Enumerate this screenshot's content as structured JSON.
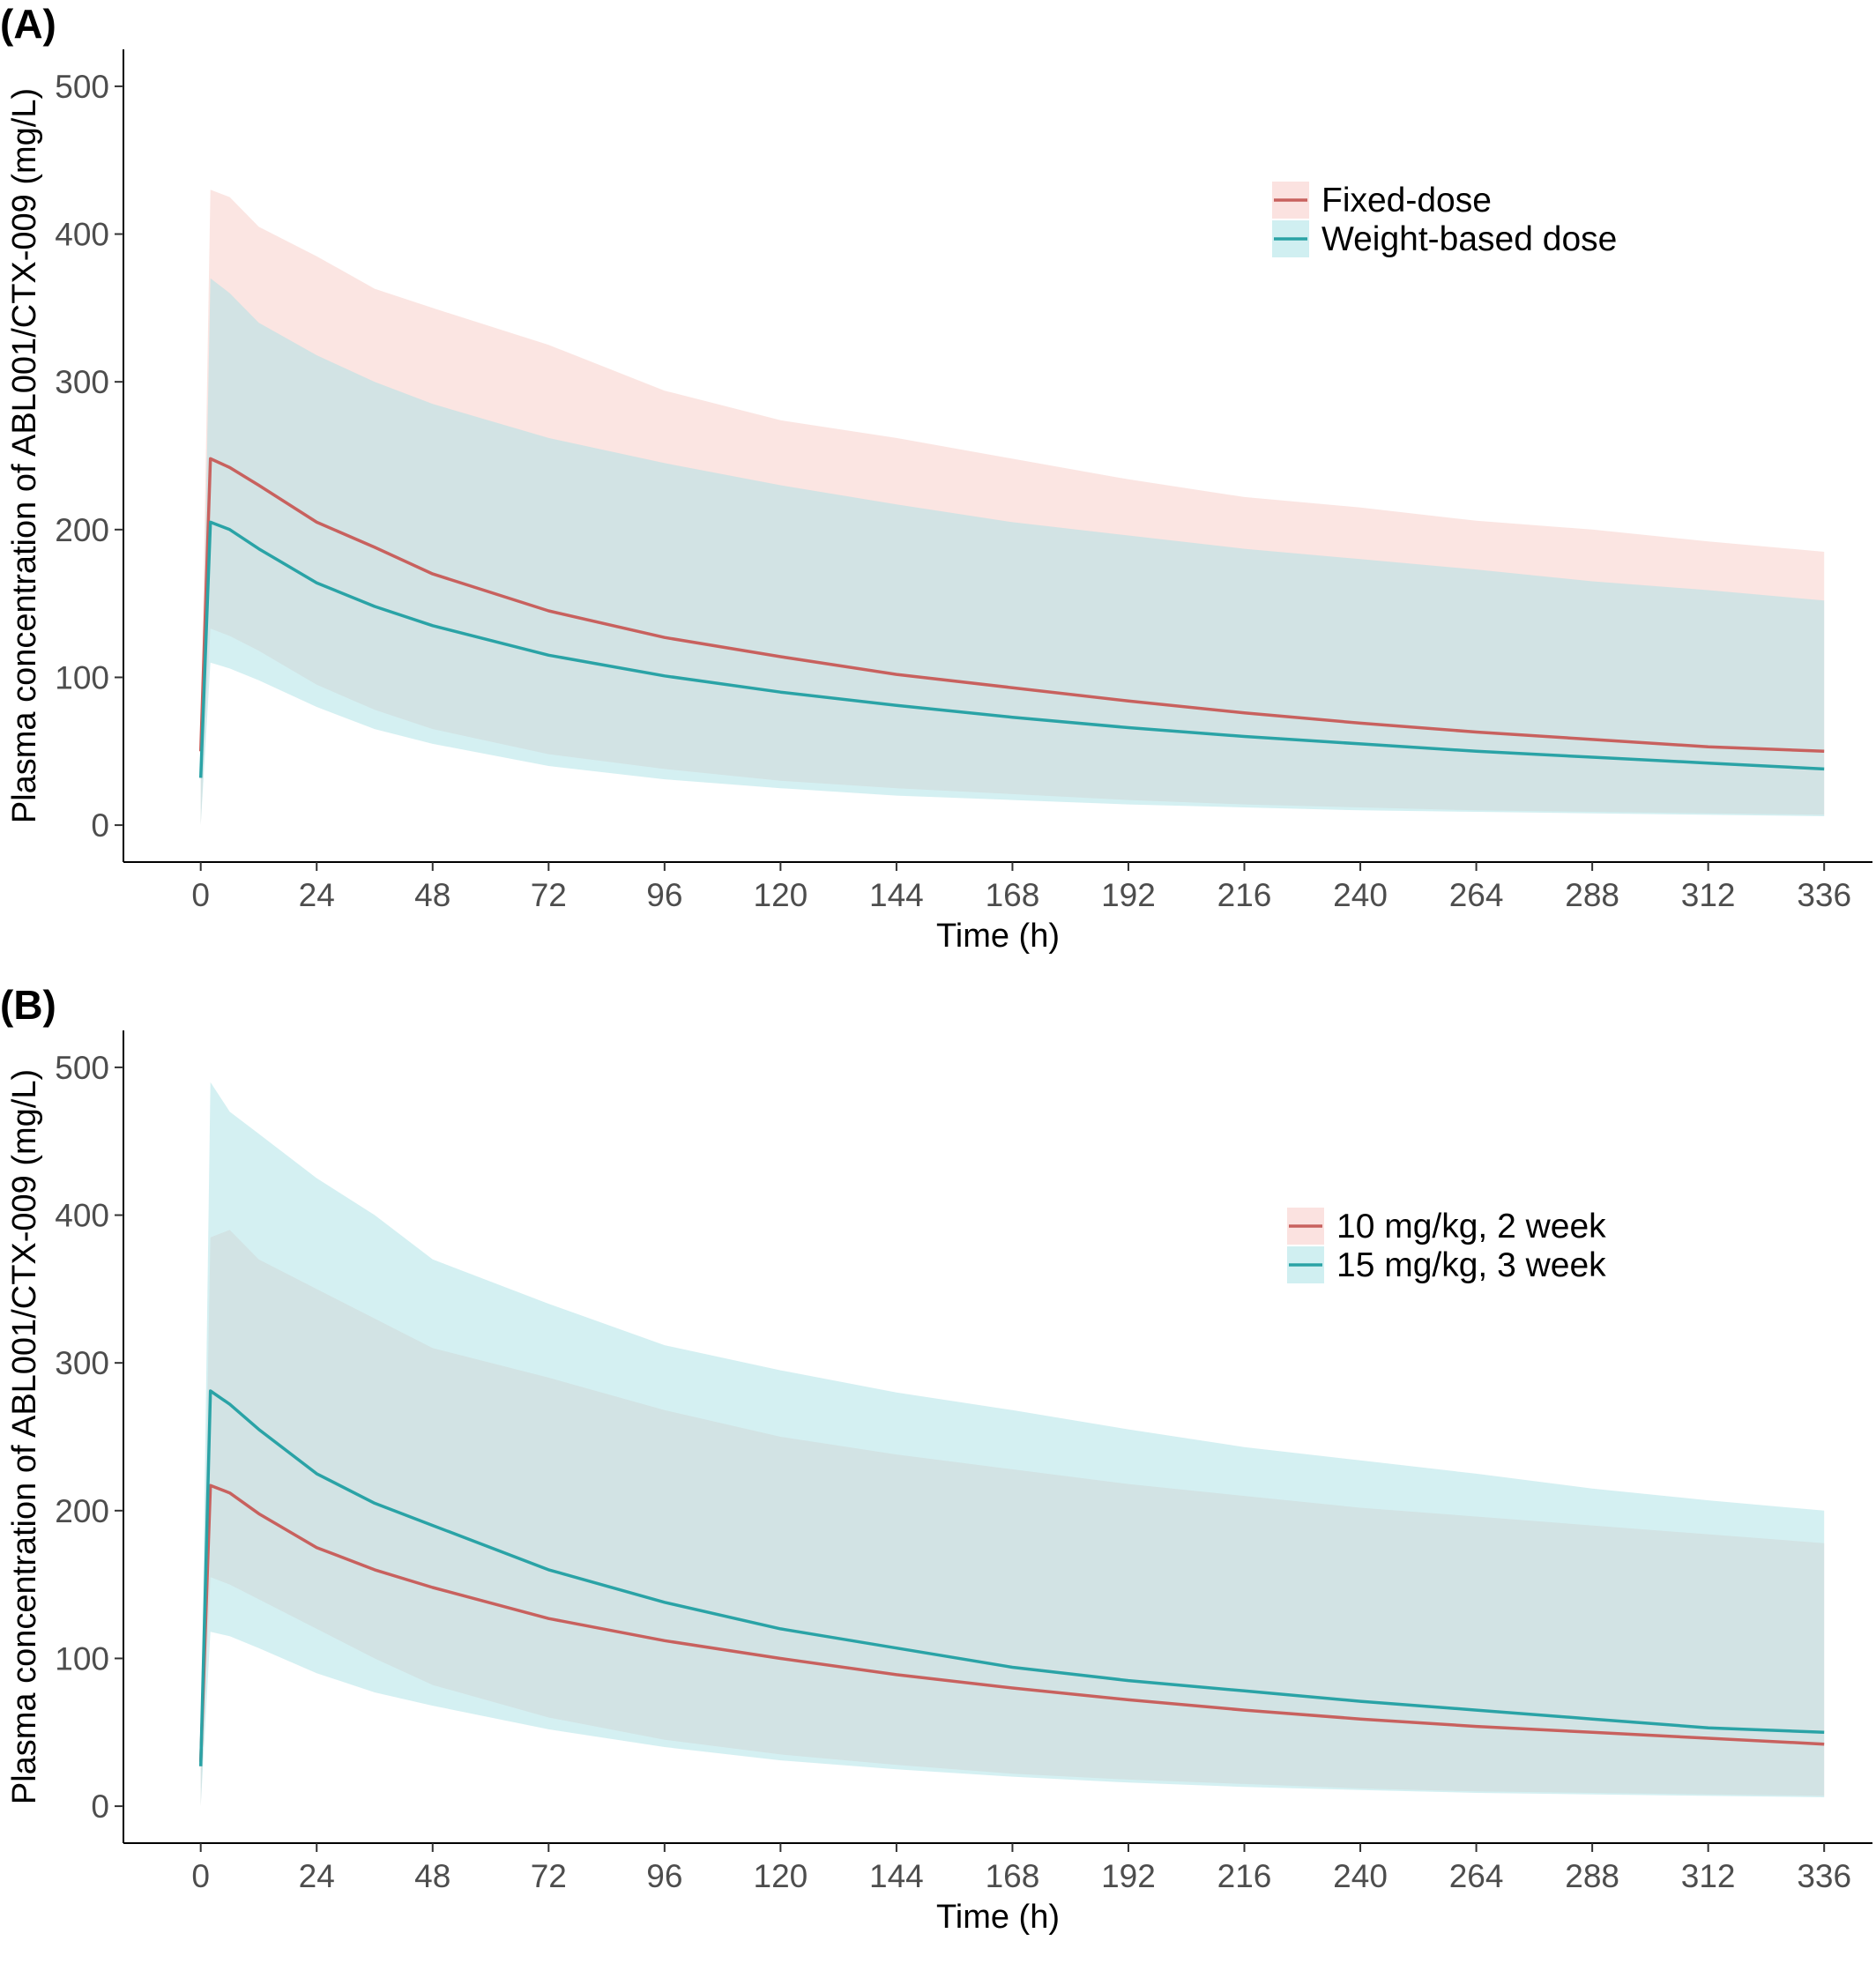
{
  "chart_data": [
    {
      "type": "line",
      "panel_label": "(A)",
      "xlabel": "Time (h)",
      "ylabel": "Plasma concentration of ABL001/CTX-009 (mg/L)",
      "x_ticks": [
        0,
        24,
        48,
        72,
        96,
        120,
        144,
        168,
        192,
        216,
        240,
        264,
        288,
        312,
        336
      ],
      "y_ticks": [
        0,
        100,
        200,
        300,
        400,
        500
      ],
      "xlim": [
        -16,
        346
      ],
      "ylim": [
        -25,
        525
      ],
      "grid": false,
      "legend_position": "top-right",
      "bands_are_prediction_intervals": true,
      "series": [
        {
          "name": "Fixed-dose",
          "color": "#c8615e",
          "band_color": "#f8cbc6",
          "x": [
            0,
            2,
            6,
            12,
            24,
            36,
            48,
            72,
            96,
            120,
            144,
            168,
            192,
            216,
            240,
            264,
            288,
            312,
            336
          ],
          "values": [
            50,
            248,
            242,
            230,
            205,
            188,
            170,
            145,
            127,
            114,
            102,
            93,
            84,
            76,
            69,
            63,
            58,
            53,
            50
          ],
          "upper": [
            50,
            430,
            425,
            405,
            385,
            363,
            350,
            325,
            294,
            274,
            262,
            248,
            234,
            222,
            215,
            206,
            200,
            192,
            185
          ],
          "lower": [
            0,
            133,
            128,
            118,
            95,
            78,
            65,
            48,
            38,
            30,
            25,
            21,
            17,
            14,
            12,
            10,
            9,
            8,
            7
          ]
        },
        {
          "name": "Weight-based dose",
          "color": "#2aa3a6",
          "band_color": "#a9e2e6",
          "x": [
            0,
            2,
            6,
            12,
            24,
            36,
            48,
            72,
            96,
            120,
            144,
            168,
            192,
            216,
            240,
            264,
            288,
            312,
            336
          ],
          "values": [
            32,
            205,
            200,
            187,
            164,
            148,
            135,
            115,
            101,
            90,
            81,
            73,
            66,
            60,
            55,
            50,
            46,
            42,
            38
          ],
          "upper": [
            32,
            370,
            360,
            340,
            318,
            300,
            285,
            262,
            245,
            230,
            217,
            205,
            196,
            187,
            180,
            173,
            165,
            159,
            152
          ],
          "lower": [
            0,
            110,
            106,
            98,
            80,
            65,
            55,
            40,
            31,
            25,
            20,
            17,
            14,
            12,
            10,
            9,
            8,
            7,
            6
          ]
        }
      ]
    },
    {
      "type": "line",
      "panel_label": "(B)",
      "xlabel": "Time (h)",
      "ylabel": "Plasma concentration of ABL001/CTX-009 (mg/L)",
      "x_ticks": [
        0,
        24,
        48,
        72,
        96,
        120,
        144,
        168,
        192,
        216,
        240,
        264,
        288,
        312,
        336
      ],
      "y_ticks": [
        0,
        100,
        200,
        300,
        400,
        500
      ],
      "xlim": [
        -16,
        346
      ],
      "ylim": [
        -25,
        525
      ],
      "grid": false,
      "legend_position": "top-right",
      "bands_are_prediction_intervals": true,
      "series": [
        {
          "name": "10 mg/kg, 2 week",
          "color": "#c8615e",
          "band_color": "#f8cbc6",
          "x": [
            0,
            2,
            6,
            12,
            24,
            36,
            48,
            72,
            96,
            120,
            144,
            168,
            192,
            216,
            240,
            264,
            288,
            312,
            336
          ],
          "values": [
            30,
            217,
            212,
            198,
            175,
            160,
            148,
            127,
            112,
            100,
            89,
            80,
            72,
            65,
            59,
            54,
            50,
            46,
            42
          ],
          "upper": [
            30,
            385,
            390,
            370,
            350,
            330,
            310,
            290,
            268,
            250,
            238,
            228,
            218,
            210,
            202,
            196,
            190,
            184,
            178
          ],
          "lower": [
            0,
            155,
            150,
            140,
            120,
            100,
            82,
            60,
            45,
            35,
            28,
            22,
            18,
            15,
            12,
            10,
            9,
            8,
            7
          ]
        },
        {
          "name": "15 mg/kg, 3 week",
          "color": "#2aa3a6",
          "band_color": "#a9e2e6",
          "x": [
            0,
            2,
            6,
            12,
            24,
            36,
            48,
            72,
            96,
            120,
            144,
            168,
            192,
            216,
            240,
            264,
            288,
            312,
            336
          ],
          "values": [
            27,
            281,
            272,
            255,
            225,
            205,
            190,
            160,
            138,
            120,
            107,
            94,
            85,
            78,
            71,
            65,
            59,
            53,
            50
          ],
          "upper": [
            27,
            490,
            470,
            455,
            425,
            400,
            370,
            340,
            312,
            295,
            280,
            268,
            255,
            243,
            234,
            225,
            215,
            207,
            200
          ],
          "lower": [
            0,
            118,
            115,
            107,
            90,
            77,
            68,
            52,
            40,
            31,
            25,
            20,
            16,
            13,
            11,
            9,
            8,
            7,
            6
          ]
        }
      ]
    }
  ]
}
